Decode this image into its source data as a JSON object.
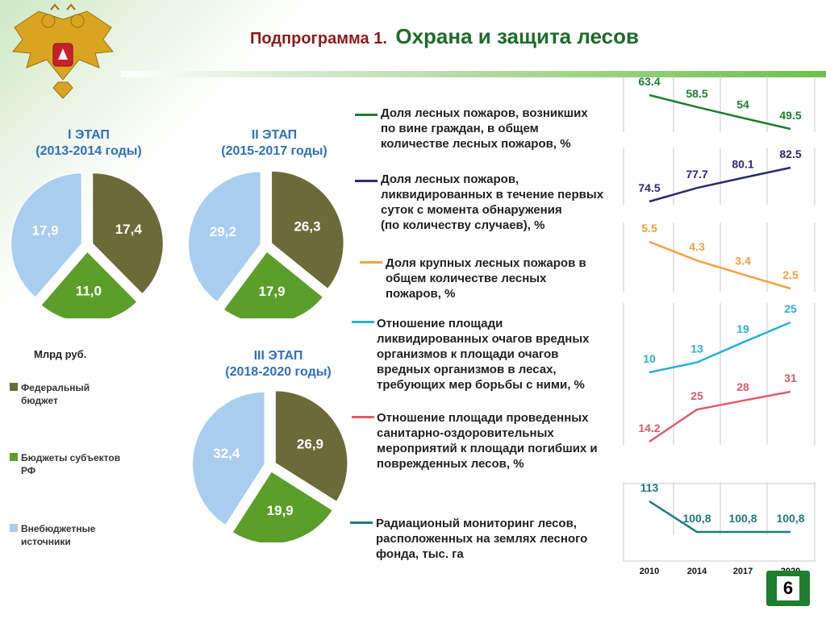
{
  "header": {
    "title_prefix": "Подпрограмма 1.",
    "title_main": "Охрана и защита лесов"
  },
  "page_number": "6",
  "unit_label": "Млрд руб.",
  "legend": [
    {
      "label": "Федеральный бюджет",
      "color": "#6b6b3a"
    },
    {
      "label": "Бюджеты субъектов РФ",
      "color": "#5b9e2a"
    },
    {
      "label": "Внебюджетные источники",
      "color": "#a9cdef"
    }
  ],
  "stages": [
    {
      "name": "I ЭТАП",
      "years": "(2013-2014 годы)"
    },
    {
      "name": "II ЭТАП",
      "years": "(2015-2017 годы)"
    },
    {
      "name": "III ЭТАП",
      "years": "(2018-2020 годы)"
    }
  ],
  "indicators": [
    {
      "lines": [
        "Доля лесных пожаров, возникших",
        "по вине граждан, в общем",
        "количестве лесных пожаров, %"
      ],
      "color": "#1e7d2e"
    },
    {
      "lines": [
        "Доля лесных пожаров,",
        "ликвидированных в течение первых",
        "суток с момента обнаружения",
        "(по количеству случаев), %"
      ],
      "color": "#2a2a6e"
    },
    {
      "lines": [
        "Доля крупных лесных пожаров в",
        "общем количестве лесных",
        "пожаров, %"
      ],
      "color": "#f0a040"
    },
    {
      "lines": [
        "Отношение площади",
        "ликвидированных очагов вредных",
        "организмов к площади очагов",
        "вредных организмов в лесах,",
        "требующих мер борьбы с ними, %"
      ],
      "color": "#29b0d8"
    },
    {
      "lines": [
        "Отношение площади проведенных",
        "санитарно-оздоровительных",
        "мероприятий к площади погибших и",
        "поврежденных лесов, %"
      ],
      "color": "#e05a6a"
    },
    {
      "lines": [
        "Радиационый мониторинг лесов,",
        "расположенных на землях лесного",
        "фонда, тыс. га"
      ],
      "color": "#1f7a7a"
    }
  ],
  "chart_data": [
    {
      "type": "pie",
      "title": "I ЭТАП (2013-2014 годы)",
      "unit": "Млрд руб.",
      "categories": [
        "Федеральный бюджет",
        "Бюджеты субъектов РФ",
        "Внебюджетные источники"
      ],
      "values": [
        17.4,
        11.0,
        17.9
      ],
      "labels": [
        "17,4",
        "11,0",
        "17,9"
      ]
    },
    {
      "type": "pie",
      "title": "II ЭТАП (2015-2017 годы)",
      "unit": "Млрд руб.",
      "categories": [
        "Федеральный бюджет",
        "Бюджеты субъектов РФ",
        "Внебюджетные источники"
      ],
      "values": [
        26.3,
        17.9,
        29.2
      ],
      "labels": [
        "26,3",
        "17,9",
        "29,2"
      ]
    },
    {
      "type": "pie",
      "title": "III ЭТАП (2018-2020 годы)",
      "unit": "Млрд руб.",
      "categories": [
        "Федеральный бюджет",
        "Бюджеты субъектов РФ",
        "Внебюджетные источники"
      ],
      "values": [
        26.9,
        19.9,
        32.4
      ],
      "labels": [
        "26,9",
        "19,9",
        "32,4"
      ]
    },
    {
      "type": "line",
      "x": [
        "2010",
        "2014",
        "2017",
        "2020"
      ],
      "series": [
        {
          "values": [
            63.4,
            58.5,
            54,
            49.5
          ],
          "labels": [
            "63.4",
            "58.5",
            "54",
            "49.5"
          ],
          "color": "#1e7d2e"
        },
        {
          "values": [
            74.5,
            77.7,
            80.1,
            82.5
          ],
          "labels": [
            "74.5",
            "77.7",
            "80.1",
            "82.5"
          ],
          "color": "#2a2a6e"
        },
        {
          "values": [
            5.5,
            4.3,
            3.4,
            2.5
          ],
          "labels": [
            "5.5",
            "4.3",
            "3.4",
            "2.5"
          ],
          "color": "#f0a040"
        },
        {
          "values": [
            10,
            13,
            19,
            25
          ],
          "labels": [
            "10",
            "13",
            "19",
            "25"
          ],
          "color": "#29b0d8"
        },
        {
          "values": [
            14.2,
            25,
            28,
            31
          ],
          "labels": [
            "14.2",
            "25",
            "28",
            "31"
          ],
          "color": "#e05a6a"
        },
        {
          "values": [
            113,
            100.8,
            100.8,
            100.8
          ],
          "labels": [
            "113",
            "100,8",
            "100,8",
            "100,8"
          ],
          "color": "#1f7a7a"
        }
      ]
    }
  ]
}
